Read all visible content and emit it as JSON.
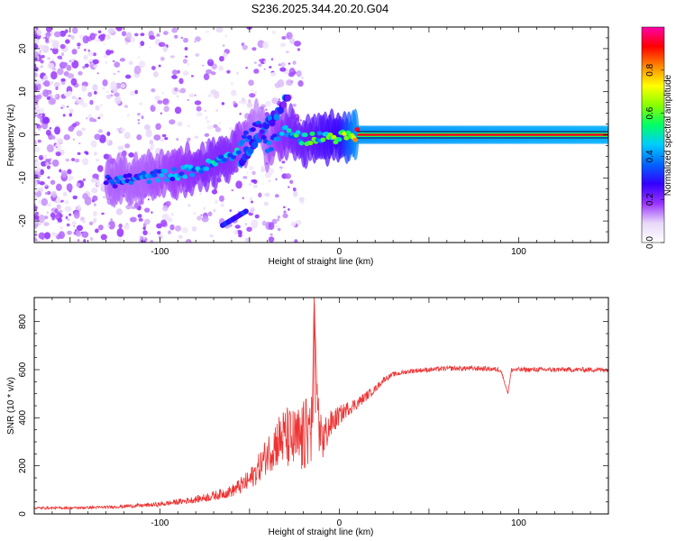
{
  "title": "S236.2025.344.20.20.G04",
  "chart_data": [
    {
      "type": "heatmap",
      "xlabel": "Height of straight line (km)",
      "ylabel": "Frequency (Hz)",
      "xlim": [
        -170,
        150
      ],
      "ylim": [
        -25,
        25
      ],
      "xticks": [
        -100,
        0,
        100
      ],
      "yticks": [
        -20,
        -10,
        0,
        10,
        20
      ],
      "colorbar": {
        "label": "Normalized spectral amplitude",
        "range": [
          0,
          1
        ],
        "ticks": [
          "0.0",
          "0.2",
          "0.4",
          "0.6",
          "0.8"
        ],
        "colors": [
          "#ffffff",
          "#e8d8f8",
          "#9933ff",
          "#3300ff",
          "#0066ff",
          "#00ccff",
          "#00ff66",
          "#88ff00",
          "#ffff00",
          "#ff8800",
          "#ff0000",
          "#ff00aa"
        ]
      },
      "ridge": [
        {
          "x": -130,
          "y": -11,
          "amp": 0.35
        },
        {
          "x": -110,
          "y": -10,
          "amp": 0.35
        },
        {
          "x": -90,
          "y": -9,
          "amp": 0.4
        },
        {
          "x": -75,
          "y": -7.5,
          "amp": 0.45
        },
        {
          "x": -60,
          "y": -5,
          "amp": 0.45
        },
        {
          "x": -45,
          "y": 3,
          "amp": 0.3
        },
        {
          "x": -40,
          "y": -3,
          "amp": 0.35
        },
        {
          "x": -30,
          "y": 1,
          "amp": 0.45
        },
        {
          "x": -20,
          "y": -1,
          "amp": 0.5
        },
        {
          "x": -10,
          "y": -0.5,
          "amp": 0.55
        },
        {
          "x": 0,
          "y": -0.5,
          "amp": 0.6
        },
        {
          "x": 10,
          "y": 0,
          "amp": 0.9
        },
        {
          "x": 150,
          "y": 0,
          "amp": 0.95
        }
      ]
    },
    {
      "type": "line",
      "xlabel": "Height of straight line (km)",
      "ylabel": "SNR (10 * v/v)",
      "xlim": [
        -170,
        150
      ],
      "ylim": [
        0,
        900
      ],
      "xticks": [
        -100,
        0,
        100
      ],
      "yticks": [
        0,
        200,
        400,
        600,
        800
      ],
      "series": [
        {
          "color": "#ee3333",
          "x": [
            -170,
            -150,
            -130,
            -110,
            -100,
            -90,
            -80,
            -70,
            -60,
            -50,
            -45,
            -40,
            -35,
            -30,
            -25,
            -20,
            -15,
            -14,
            -12,
            -10,
            -5,
            0,
            5,
            10,
            15,
            20,
            25,
            30,
            40,
            50,
            60,
            80,
            90,
            94,
            96,
            100,
            120,
            140,
            150
          ],
          "y": [
            25,
            25,
            28,
            35,
            40,
            50,
            60,
            75,
            95,
            140,
            190,
            250,
            300,
            320,
            300,
            310,
            380,
            900,
            420,
            300,
            370,
            410,
            440,
            460,
            490,
            520,
            560,
            580,
            595,
            600,
            605,
            605,
            600,
            500,
            600,
            600,
            600,
            600,
            600
          ],
          "noise": [
            5,
            5,
            6,
            8,
            10,
            12,
            15,
            20,
            25,
            45,
            60,
            80,
            110,
            130,
            140,
            160,
            150,
            0,
            120,
            100,
            60,
            40,
            30,
            25,
            20,
            15,
            12,
            10,
            10,
            10,
            10,
            10,
            10,
            0,
            10,
            10,
            10,
            10,
            10
          ]
        }
      ]
    }
  ]
}
